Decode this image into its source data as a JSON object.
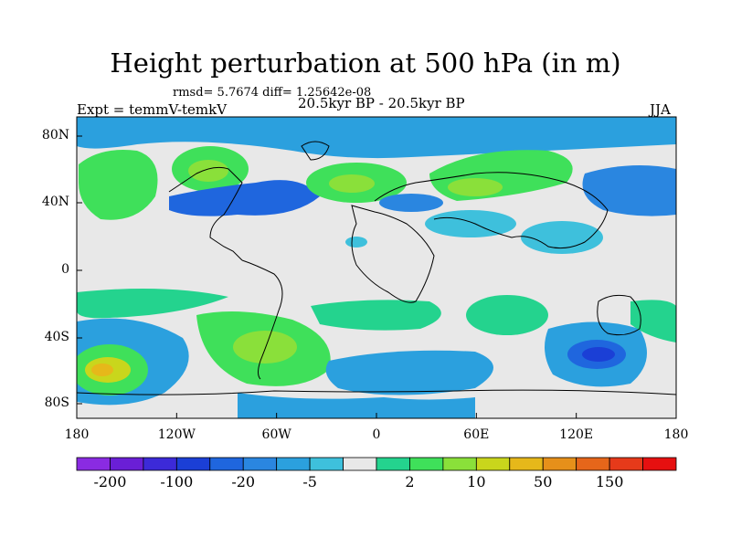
{
  "title": "Height perturbation at 500 hPa (in m)",
  "stats": "rmsd= 5.7674 diff= 1.25642e-08",
  "experiment": "Expt = temmV-temkV",
  "period": "20.5kyr BP - 20.5kyr BP",
  "season": "JJA",
  "lat_labels": [
    "80N",
    "40N",
    "0",
    "40S",
    "80S"
  ],
  "lon_labels": [
    "180",
    "120W",
    "60W",
    "0",
    "60E",
    "120E",
    "180"
  ],
  "colorbar": {
    "colors": [
      "#8a2be2",
      "#6a1fd6",
      "#3c2ad8",
      "#1b3fd6",
      "#1f66de",
      "#2a86e0",
      "#2ba0de",
      "#3ec0dc",
      "#e8e8e8",
      "#24d38e",
      "#3fe05a",
      "#8ae03a",
      "#c9d61c",
      "#e6b81a",
      "#e6901a",
      "#e6661a",
      "#e63a1a",
      "#e61010"
    ],
    "labels": [
      "-200",
      "-100",
      "-20",
      "-5",
      "2",
      "10",
      "50",
      "150"
    ]
  }
}
